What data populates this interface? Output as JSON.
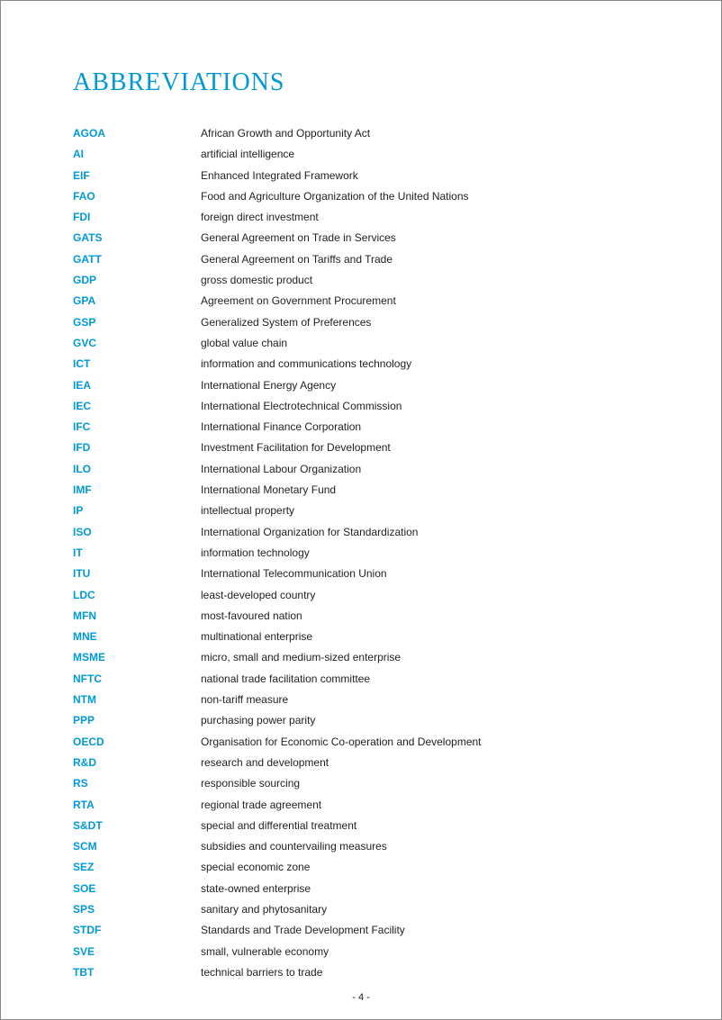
{
  "title": "ABBREVIATIONS",
  "title_color": "#0099d8",
  "term_color": "#0099d8",
  "def_color": "#222222",
  "background_color": "#ffffff",
  "title_fontsize": 28,
  "body_fontsize": 12,
  "page_number": "- 4 -",
  "abbreviations": [
    {
      "term": "AGOA",
      "def": "African Growth and Opportunity Act"
    },
    {
      "term": "AI",
      "def": "artificial intelligence"
    },
    {
      "term": "EIF",
      "def": "Enhanced Integrated Framework"
    },
    {
      "term": "FAO",
      "def": "Food and Agriculture Organization of the United Nations"
    },
    {
      "term": "FDI",
      "def": "foreign direct investment"
    },
    {
      "term": "GATS",
      "def": "General Agreement on Trade in Services"
    },
    {
      "term": "GATT",
      "def": "General Agreement on Tariffs and Trade"
    },
    {
      "term": "GDP",
      "def": "gross domestic product"
    },
    {
      "term": "GPA",
      "def": "Agreement on Government Procurement"
    },
    {
      "term": "GSP",
      "def": "Generalized System of Preferences"
    },
    {
      "term": "GVC",
      "def": "global value chain"
    },
    {
      "term": "ICT",
      "def": "information and communications technology"
    },
    {
      "term": "IEA",
      "def": "International Energy Agency"
    },
    {
      "term": "IEC",
      "def": "International Electrotechnical Commission"
    },
    {
      "term": "IFC",
      "def": "International Finance Corporation"
    },
    {
      "term": "IFD",
      "def": "Investment Facilitation for Development"
    },
    {
      "term": "ILO",
      "def": "International Labour Organization"
    },
    {
      "term": "IMF",
      "def": "International Monetary Fund"
    },
    {
      "term": "IP",
      "def": "intellectual property"
    },
    {
      "term": "ISO",
      "def": "International Organization for Standardization"
    },
    {
      "term": "IT",
      "def": "information technology"
    },
    {
      "term": "ITU",
      "def": "International Telecommunication Union"
    },
    {
      "term": "LDC",
      "def": "least-developed country"
    },
    {
      "term": "MFN",
      "def": "most-favoured nation"
    },
    {
      "term": "MNE",
      "def": "multinational enterprise"
    },
    {
      "term": "MSME",
      "def": "micro, small and medium-sized enterprise"
    },
    {
      "term": "NFTC",
      "def": "national trade facilitation committee"
    },
    {
      "term": "NTM",
      "def": "non-tariff measure"
    },
    {
      "term": "PPP",
      "def": "purchasing power parity"
    },
    {
      "term": "OECD",
      "def": "Organisation for Economic Co-operation and Development"
    },
    {
      "term": "R&D",
      "def": "research and development"
    },
    {
      "term": "RS",
      "def": "responsible sourcing"
    },
    {
      "term": "RTA",
      "def": "regional trade agreement"
    },
    {
      "term": "S&DT",
      "def": "special and differential treatment"
    },
    {
      "term": "SCM",
      "def": "subsidies and countervailing measures"
    },
    {
      "term": "SEZ",
      "def": "special economic zone"
    },
    {
      "term": "SOE",
      "def": "state-owned enterprise"
    },
    {
      "term": "SPS",
      "def": "sanitary and phytosanitary"
    },
    {
      "term": "STDF",
      "def": "Standards and Trade Development Facility"
    },
    {
      "term": "SVE",
      "def": "small, vulnerable economy"
    },
    {
      "term": "TBT",
      "def": "technical barriers to trade"
    }
  ]
}
